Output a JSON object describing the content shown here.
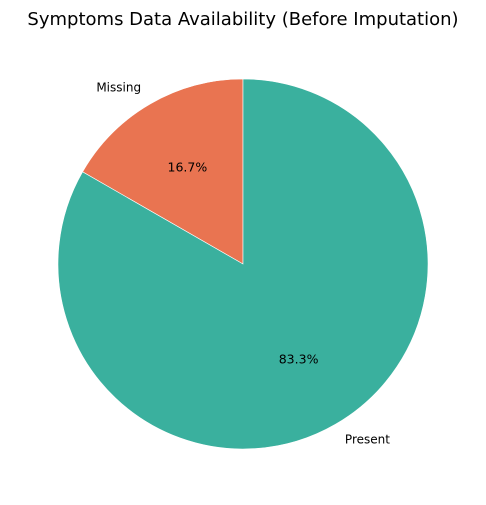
{
  "chart_data": {
    "type": "pie",
    "title": "Symptoms Data Availability (Before Imputation)",
    "slices": [
      {
        "label": "Missing",
        "value": 16.7,
        "percent_label": "16.7%",
        "color": "#e97451"
      },
      {
        "label": "Present",
        "value": 83.3,
        "percent_label": "83.3%",
        "color": "#3ab09e"
      }
    ],
    "start_angle_deg": 90,
    "direction": "counterclockwise",
    "legend": "none"
  }
}
